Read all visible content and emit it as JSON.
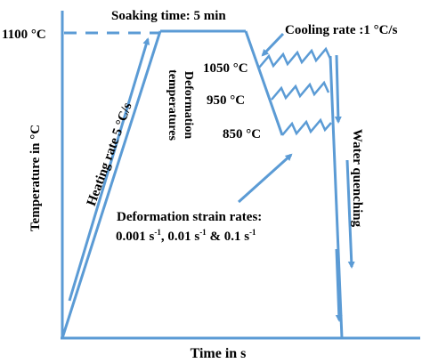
{
  "diagram": {
    "y_axis_label": "Temperature in °C",
    "x_axis_label": "Time in s",
    "temp_1100_label": "1100 °C",
    "soaking_label": "Soaking time: 5 min",
    "heating_label": "Heating rate 5 °C/s",
    "deformation_temps_line1": "Deformation",
    "deformation_temps_line2": "temperatures",
    "cooling_label": "Cooling rate :1 °C/s",
    "temp_1050_label": "1050 °C",
    "temp_950_label": "950 °C",
    "temp_850_label": "850 °C",
    "water_quenching_label": "Water quenching",
    "strain_rates_title": "Deformation strain rates:",
    "strain_rate_1": "0.001 s",
    "strain_rate_2": "0.01 s",
    "strain_rate_3": "0.1 s",
    "strain_sup": "-1",
    "strain_sep_1": ", ",
    "strain_sep_2": " & ",
    "line_color": "#5b9bd5",
    "text_color": "#000000"
  }
}
